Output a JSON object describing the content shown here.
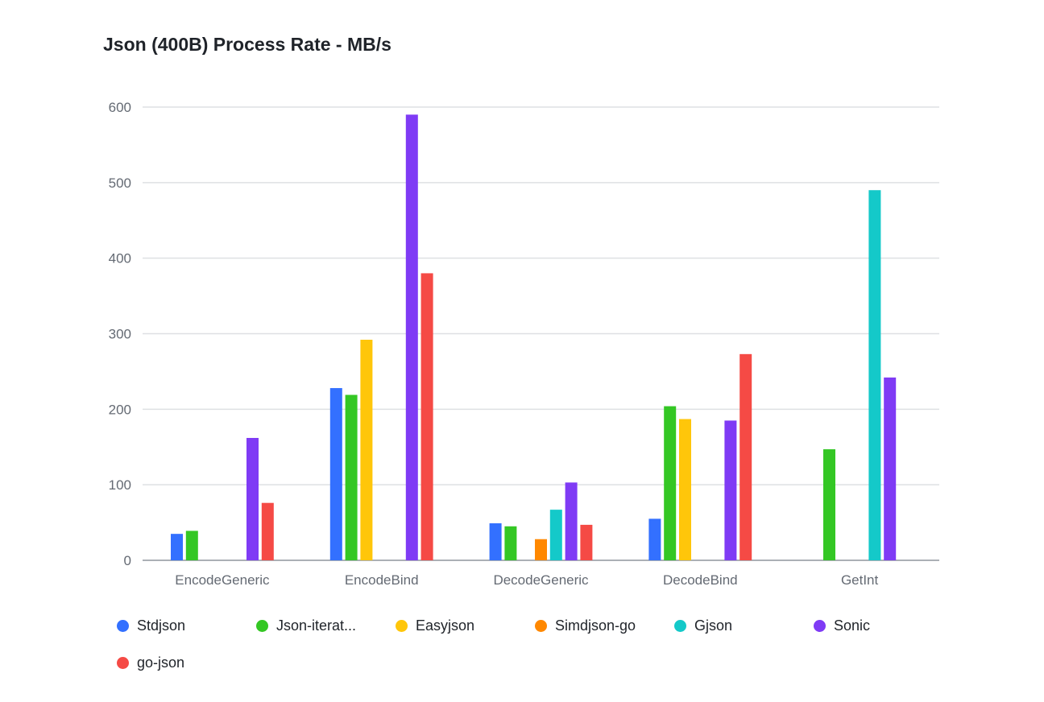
{
  "chart_data": {
    "type": "bar",
    "title": "Json (400B) Process Rate - MB/s",
    "categories": [
      "EncodeGeneric",
      "EncodeBind",
      "DecodeGeneric",
      "DecodeBind",
      "GetInt"
    ],
    "ylim": [
      0,
      600
    ],
    "yticks": [
      "0",
      "100",
      "200",
      "300",
      "400",
      "500",
      "600"
    ],
    "grid": true,
    "legend_position": "bottom",
    "series": [
      {
        "name": "Stdjson",
        "color": "#3370ff",
        "values": [
          35,
          228,
          49,
          55,
          null
        ]
      },
      {
        "name": "Json-iterat...",
        "color": "#34c724",
        "values": [
          39,
          219,
          45,
          204,
          147
        ]
      },
      {
        "name": "Easyjson",
        "color": "#ffc60a",
        "values": [
          null,
          292,
          null,
          187,
          null
        ]
      },
      {
        "name": "Simdjson-go",
        "color": "#ff8800",
        "values": [
          null,
          null,
          28,
          null,
          null
        ]
      },
      {
        "name": "Gjson",
        "color": "#14c9c9",
        "values": [
          null,
          null,
          67,
          null,
          490
        ]
      },
      {
        "name": "Sonic",
        "color": "#7f3bf5",
        "values": [
          162,
          590,
          103,
          185,
          242
        ]
      },
      {
        "name": "go-json",
        "color": "#f54a45",
        "values": [
          76,
          380,
          47,
          273,
          null
        ]
      }
    ]
  }
}
